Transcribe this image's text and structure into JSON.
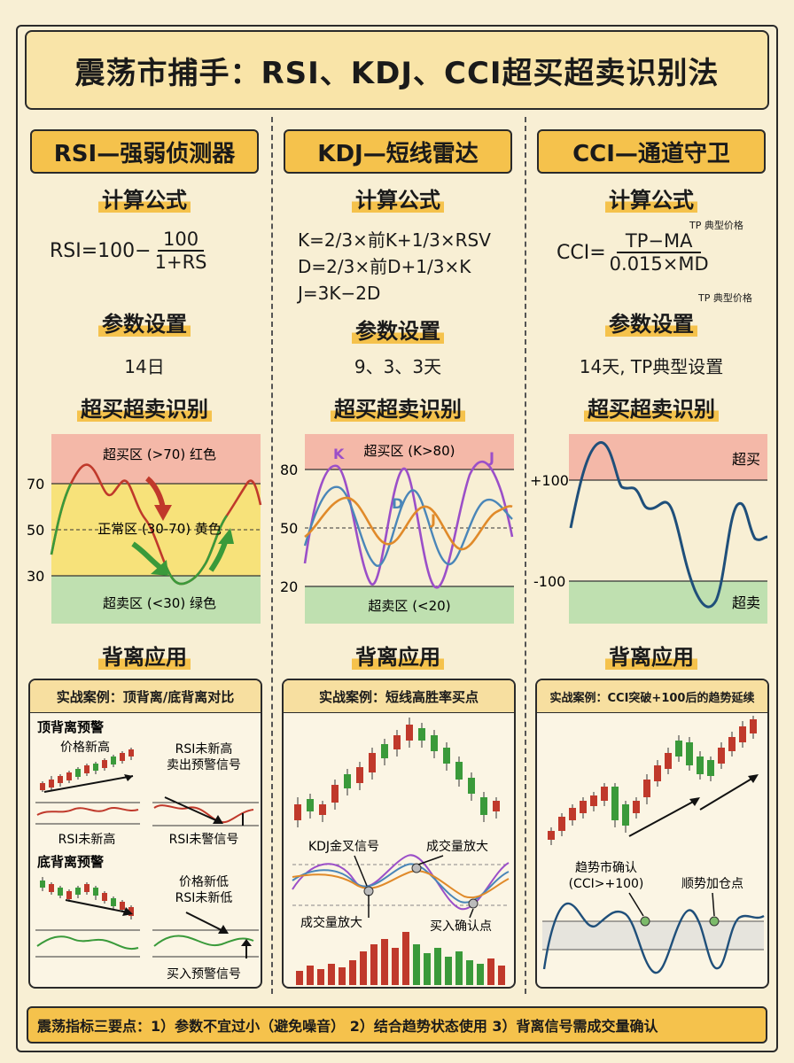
{
  "title": "震荡市捕手：RSI、KDJ、CCI超买超卖识别法",
  "labels": {
    "formula": "计算公式",
    "params": "参数设置",
    "identify": "超买超卖识别",
    "divergence": "背离应用"
  },
  "rsi": {
    "header": "RSI—强弱侦测器",
    "formula_left": "RSI=100−",
    "formula_num": "100",
    "formula_den": "1+RS",
    "params": "14日",
    "zone_overbought": "超买区 (>70) 红色",
    "zone_normal": "正常区 (30-70) 黄色",
    "zone_oversold": "超卖区 (<30) 绿色",
    "ticks": [
      "70",
      "50",
      "30"
    ],
    "case_title": "实战案例：顶背离/底背离对比",
    "top_div": "顶背离预警",
    "price_high": "价格新高",
    "rsi_no_high": "RSI未新高",
    "rsi_no_high_sell": "RSI未新高",
    "sell_signal": "卖出预警信号",
    "rsi_no_warn": "RSI未警信号",
    "bottom_div": "底背离预警",
    "price_low": "价格新低",
    "rsi_no_low": "RSI未新低",
    "buy_signal": "买入预警信号"
  },
  "kdj": {
    "header": "KDJ—短线雷达",
    "formula_k": "K=2/3×前K+1/3×RSV",
    "formula_d": "D=2/3×前D+1/3×K",
    "formula_j": "J=3K−2D",
    "params": "9、3、3天",
    "zone_overbought": "超买区 (K>80)",
    "zone_oversold": "超卖区 (<20)",
    "ticks": [
      "80",
      "50",
      "20"
    ],
    "line_k": "K",
    "line_d": "D",
    "line_j1": "J",
    "line_j2": "J",
    "case_title": "实战案例：短线高胜率买点",
    "golden_cross": "KDJ金叉信号",
    "volume_up1": "成交量放大",
    "volume_up2": "成交量放大",
    "buy_confirm": "买入确认点"
  },
  "cci": {
    "header": "CCI—通道守卫",
    "formula_left": "CCI=",
    "formula_num": "TP−MA",
    "formula_den": "0.015×MD",
    "tp_note1": "TP 典型价格",
    "tp_note2": "TP 典型价格",
    "params": "14天, TP典型设置",
    "zone_overbought": "超买",
    "zone_oversold": "超卖",
    "ticks": [
      "+100",
      "-100"
    ],
    "case_title": "实战案例：CCI突破+100后的趋势延续",
    "trend_confirm1": "趋势市确认",
    "trend_confirm2": "(CCI>+100)",
    "add_position": "顺势加仓点"
  },
  "footer": "震荡指标三要点：1）参数不宜过小（避免噪音） 2）结合趋势状态使用 3）背离信号需成交量确认",
  "colors": {
    "background": "#f8efd4",
    "accent": "#f5c24c",
    "overbought": "#f4b8a8",
    "normal": "#f7e27a",
    "oversold": "#bfe0b0",
    "k_line": "#9b4fc8",
    "d_line": "#4a86b8",
    "j_line": "#e08a2a",
    "cci_line": "#1f4f7a"
  }
}
